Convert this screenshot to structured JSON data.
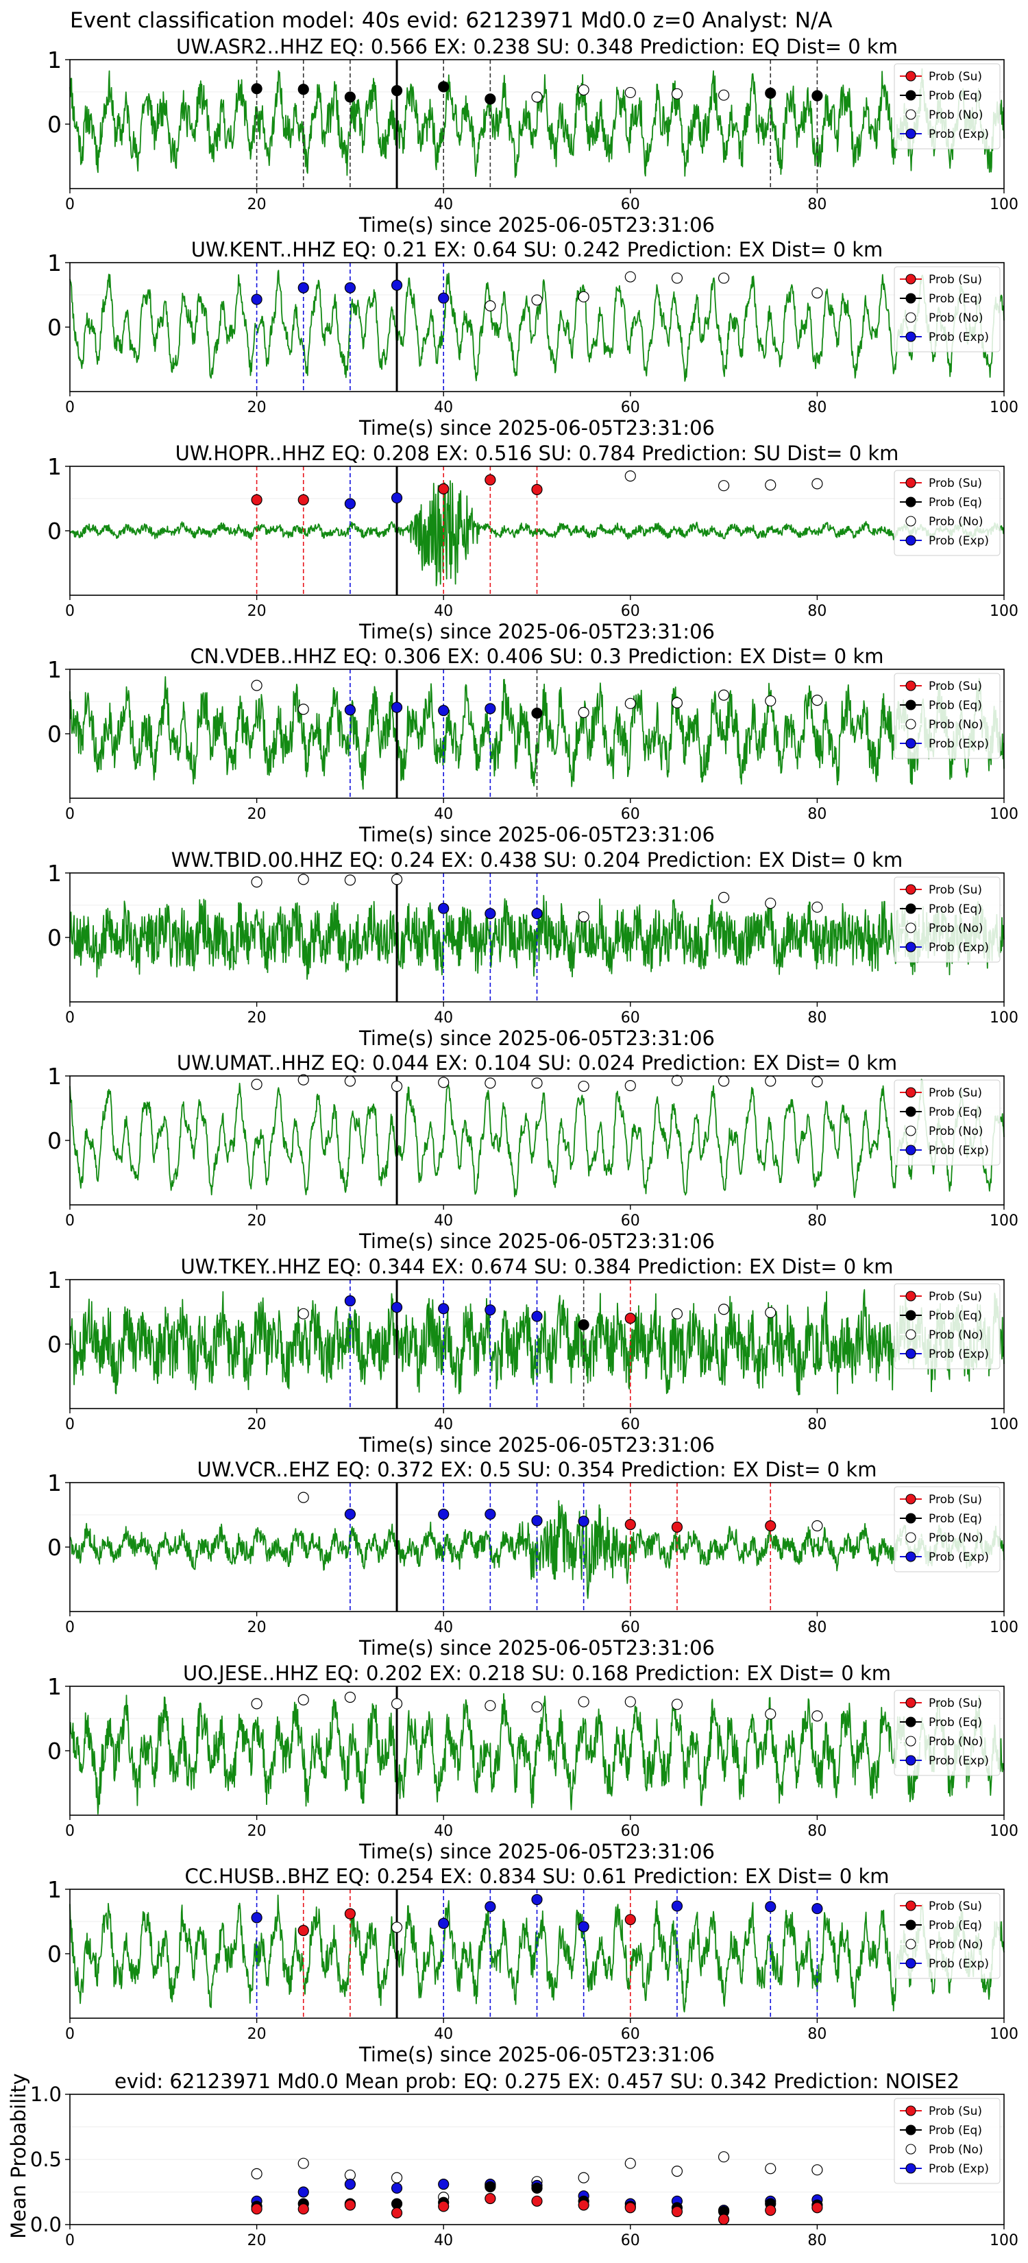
{
  "suptitle": "Event classification model: 40s evid: 62123971 Md0.0 z=0 Analyst: N/A",
  "colors": {
    "su": "#e8141c",
    "eq": "#000000",
    "no": "#ffffff",
    "exp": "#1010dd",
    "trace": "#138a13"
  },
  "legend": [
    "Prob (Su)",
    "Prob (Eq)",
    "Prob (No)",
    "Prob (Exp)"
  ],
  "x_axis": {
    "min": 0,
    "max": 100,
    "ticks": [
      0,
      20,
      40,
      60,
      80,
      100
    ]
  },
  "chart_data": [
    {
      "type": "scatter",
      "station": "UW.ASR2..HHZ",
      "title": "UW.ASR2..HHZ   EQ: 0.566  EX: 0.238  SU: 0.348   Prediction: EQ    Dist= 0 km",
      "xlabel": "Time(s) since 2025-06-05T23:31:06",
      "yticks": [
        0,
        1
      ],
      "ylim": [
        -1,
        1
      ],
      "trace": {
        "amp": 0.45,
        "noise": 0.25,
        "seed": 11
      },
      "pick_time": 35,
      "points": [
        [
          20,
          0.55,
          "eq"
        ],
        [
          25,
          0.54,
          "eq"
        ],
        [
          30,
          0.42,
          "eq"
        ],
        [
          35,
          0.52,
          "eq"
        ],
        [
          40,
          0.58,
          "eq"
        ],
        [
          45,
          0.39,
          "eq"
        ],
        [
          50,
          0.42,
          "no"
        ],
        [
          55,
          0.53,
          "no"
        ],
        [
          60,
          0.49,
          "no"
        ],
        [
          65,
          0.47,
          "no"
        ],
        [
          70,
          0.45,
          "no"
        ],
        [
          75,
          0.48,
          "eq"
        ],
        [
          80,
          0.44,
          "eq"
        ]
      ]
    },
    {
      "type": "scatter",
      "station": "UW.KENT..HHZ",
      "title": "UW.KENT..HHZ   EQ: 0.21  EX: 0.64  SU: 0.242   Prediction: EX    Dist= 0 km",
      "xlabel": "Time(s) since 2025-06-05T23:31:06",
      "yticks": [
        0,
        1
      ],
      "ylim": [
        -1,
        1
      ],
      "trace": {
        "amp": 0.55,
        "noise": 0.12,
        "seed": 23
      },
      "pick_time": 35,
      "points": [
        [
          20,
          0.43,
          "exp"
        ],
        [
          25,
          0.61,
          "exp"
        ],
        [
          30,
          0.61,
          "exp"
        ],
        [
          35,
          0.65,
          "exp"
        ],
        [
          40,
          0.45,
          "exp"
        ],
        [
          45,
          0.33,
          "no"
        ],
        [
          50,
          0.42,
          "no"
        ],
        [
          55,
          0.47,
          "no"
        ],
        [
          60,
          0.78,
          "no"
        ],
        [
          65,
          0.76,
          "no"
        ],
        [
          70,
          0.76,
          "no"
        ],
        [
          80,
          0.53,
          "no"
        ]
      ]
    },
    {
      "type": "scatter",
      "station": "UW.HOPR..HHZ",
      "title": "UW.HOPR..HHZ   EQ: 0.208  EX: 0.516  SU: 0.784   Prediction: SU    Dist= 0 km",
      "xlabel": "Time(s) since 2025-06-05T23:31:06",
      "yticks": [
        0,
        1
      ],
      "ylim": [
        -1,
        1
      ],
      "trace": {
        "amp": 0.06,
        "noise": 0.06,
        "seed": 37,
        "burst": [
          36,
          44,
          0.9
        ]
      },
      "pick_time": 35,
      "points": [
        [
          20,
          0.48,
          "su"
        ],
        [
          25,
          0.48,
          "su"
        ],
        [
          30,
          0.42,
          "exp"
        ],
        [
          35,
          0.51,
          "exp"
        ],
        [
          40,
          0.65,
          "su"
        ],
        [
          45,
          0.79,
          "su"
        ],
        [
          50,
          0.64,
          "su"
        ],
        [
          60,
          0.85,
          "no"
        ],
        [
          70,
          0.7,
          "no"
        ],
        [
          75,
          0.71,
          "no"
        ],
        [
          80,
          0.73,
          "no"
        ]
      ]
    },
    {
      "type": "scatter",
      "station": "CN.VDEB..HHZ",
      "title": "CN.VDEB..HHZ   EQ: 0.306  EX: 0.406  SU: 0.3   Prediction: EX    Dist= 0 km",
      "xlabel": "Time(s) since 2025-06-05T23:31:06",
      "yticks": [
        0,
        1
      ],
      "ylim": [
        -1,
        1
      ],
      "trace": {
        "amp": 0.45,
        "noise": 0.3,
        "seed": 41
      },
      "pick_time": 35,
      "points": [
        [
          20,
          0.75,
          "no"
        ],
        [
          25,
          0.38,
          "no"
        ],
        [
          30,
          0.37,
          "exp"
        ],
        [
          35,
          0.41,
          "exp"
        ],
        [
          40,
          0.36,
          "exp"
        ],
        [
          45,
          0.39,
          "exp"
        ],
        [
          50,
          0.32,
          "eq"
        ],
        [
          55,
          0.33,
          "no"
        ],
        [
          60,
          0.47,
          "no"
        ],
        [
          65,
          0.48,
          "no"
        ],
        [
          70,
          0.6,
          "no"
        ],
        [
          75,
          0.51,
          "no"
        ],
        [
          80,
          0.52,
          "no"
        ]
      ]
    },
    {
      "type": "scatter",
      "station": "WW.TBID.00.HHZ",
      "title": "WW.TBID.00.HHZ   EQ: 0.24  EX: 0.438  SU: 0.204   Prediction: EX    Dist= 0 km",
      "xlabel": "Time(s) since 2025-06-05T23:31:06",
      "yticks": [
        0,
        1
      ],
      "ylim": [
        -1,
        1
      ],
      "trace": {
        "amp": 0.2,
        "noise": 0.4,
        "seed": 53
      },
      "pick_time": 35,
      "points": [
        [
          20,
          0.86,
          "no"
        ],
        [
          25,
          0.9,
          "no"
        ],
        [
          30,
          0.89,
          "no"
        ],
        [
          35,
          0.9,
          "no"
        ],
        [
          40,
          0.45,
          "exp"
        ],
        [
          45,
          0.37,
          "exp"
        ],
        [
          50,
          0.37,
          "exp"
        ],
        [
          55,
          0.32,
          "no"
        ],
        [
          70,
          0.62,
          "no"
        ],
        [
          75,
          0.53,
          "no"
        ],
        [
          80,
          0.47,
          "no"
        ]
      ]
    },
    {
      "type": "scatter",
      "station": "UW.UMAT..HHZ",
      "title": "UW.UMAT..HHZ   EQ: 0.044  EX: 0.104  SU: 0.024   Prediction: EX    Dist= 0 km",
      "xlabel": "Time(s) since 2025-06-05T23:31:06",
      "yticks": [
        0,
        1
      ],
      "ylim": [
        -1,
        1
      ],
      "trace": {
        "amp": 0.6,
        "noise": 0.1,
        "seed": 67
      },
      "pick_time": 35,
      "points": [
        [
          20,
          0.87,
          "no"
        ],
        [
          25,
          0.94,
          "no"
        ],
        [
          30,
          0.92,
          "no"
        ],
        [
          35,
          0.84,
          "no"
        ],
        [
          40,
          0.9,
          "no"
        ],
        [
          45,
          0.89,
          "no"
        ],
        [
          50,
          0.89,
          "no"
        ],
        [
          55,
          0.84,
          "no"
        ],
        [
          60,
          0.85,
          "no"
        ],
        [
          65,
          0.93,
          "no"
        ],
        [
          70,
          0.92,
          "no"
        ],
        [
          75,
          0.92,
          "no"
        ],
        [
          80,
          0.91,
          "no"
        ]
      ]
    },
    {
      "type": "scatter",
      "station": "UW.TKEY..HHZ",
      "title": "UW.TKEY..HHZ   EQ: 0.344  EX: 0.674  SU: 0.384   Prediction: EX    Dist= 0 km",
      "xlabel": "Time(s) since 2025-06-05T23:31:06",
      "yticks": [
        0,
        1
      ],
      "ylim": [
        -1,
        1
      ],
      "trace": {
        "amp": 0.3,
        "noise": 0.45,
        "seed": 71
      },
      "pick_time": 35,
      "points": [
        [
          25,
          0.47,
          "no"
        ],
        [
          30,
          0.67,
          "exp"
        ],
        [
          35,
          0.57,
          "exp"
        ],
        [
          40,
          0.55,
          "exp"
        ],
        [
          45,
          0.53,
          "exp"
        ],
        [
          50,
          0.43,
          "exp"
        ],
        [
          55,
          0.3,
          "eq"
        ],
        [
          60,
          0.4,
          "su"
        ],
        [
          65,
          0.47,
          "no"
        ],
        [
          70,
          0.54,
          "no"
        ],
        [
          75,
          0.49,
          "no"
        ]
      ]
    },
    {
      "type": "scatter",
      "station": "UW.VCR..EHZ",
      "title": "UW.VCR..EHZ   EQ: 0.372  EX: 0.5  SU: 0.354   Prediction: EX    Dist= 0 km",
      "xlabel": "Time(s) since 2025-06-05T23:31:06",
      "yticks": [
        0,
        1
      ],
      "ylim": [
        -1,
        1
      ],
      "trace": {
        "amp": 0.18,
        "noise": 0.15,
        "seed": 83,
        "burst": [
          47,
          62,
          0.55
        ]
      },
      "pick_time": 35,
      "points": [
        [
          25,
          0.77,
          "no"
        ],
        [
          30,
          0.51,
          "exp"
        ],
        [
          40,
          0.51,
          "exp"
        ],
        [
          45,
          0.51,
          "exp"
        ],
        [
          50,
          0.41,
          "exp"
        ],
        [
          55,
          0.4,
          "exp"
        ],
        [
          60,
          0.35,
          "su"
        ],
        [
          65,
          0.31,
          "su"
        ],
        [
          75,
          0.33,
          "su"
        ],
        [
          80,
          0.33,
          "no"
        ]
      ]
    },
    {
      "type": "scatter",
      "station": "UO.JESE..HHZ",
      "title": "UO.JESE..HHZ   EQ: 0.202  EX: 0.218  SU: 0.168   Prediction: EX    Dist= 0 km",
      "xlabel": "Time(s) since 2025-06-05T23:31:06",
      "yticks": [
        0,
        1
      ],
      "ylim": [
        -1,
        1
      ],
      "trace": {
        "amp": 0.5,
        "noise": 0.28,
        "seed": 97
      },
      "pick_time": 35,
      "points": [
        [
          20,
          0.73,
          "no"
        ],
        [
          25,
          0.79,
          "no"
        ],
        [
          30,
          0.83,
          "no"
        ],
        [
          35,
          0.73,
          "no"
        ],
        [
          45,
          0.7,
          "no"
        ],
        [
          50,
          0.68,
          "no"
        ],
        [
          55,
          0.76,
          "no"
        ],
        [
          60,
          0.76,
          "no"
        ],
        [
          65,
          0.72,
          "no"
        ],
        [
          75,
          0.57,
          "no"
        ],
        [
          80,
          0.54,
          "no"
        ]
      ]
    },
    {
      "type": "scatter",
      "station": "CC.HUSB..BHZ",
      "title": "CC.HUSB..BHZ   EQ: 0.254  EX: 0.834  SU: 0.61   Prediction: EX    Dist= 0 km",
      "xlabel": "Time(s) since 2025-06-05T23:31:06",
      "yticks": [
        0,
        1
      ],
      "ylim": [
        -1,
        1
      ],
      "trace": {
        "amp": 0.5,
        "noise": 0.22,
        "seed": 101
      },
      "pick_time": 35,
      "points": [
        [
          20,
          0.56,
          "exp"
        ],
        [
          25,
          0.36,
          "su"
        ],
        [
          30,
          0.62,
          "su"
        ],
        [
          35,
          0.41,
          "no"
        ],
        [
          40,
          0.47,
          "exp"
        ],
        [
          45,
          0.73,
          "exp"
        ],
        [
          50,
          0.84,
          "exp"
        ],
        [
          55,
          0.42,
          "exp"
        ],
        [
          60,
          0.53,
          "su"
        ],
        [
          65,
          0.74,
          "exp"
        ],
        [
          75,
          0.73,
          "exp"
        ],
        [
          80,
          0.7,
          "exp"
        ]
      ]
    },
    {
      "type": "scatter",
      "station": "mean",
      "title": "evid: 62123971  Md0.0   Mean prob:   EQ: 0.275  EX: 0.457  SU: 0.342   Prediction: NOISE2",
      "xlabel": "",
      "ylabel": "Mean Probability",
      "ylim": [
        0,
        1
      ],
      "yticks": [
        0.0,
        0.5,
        1.0
      ],
      "points": [
        [
          20,
          0.39,
          "no"
        ],
        [
          20,
          0.18,
          "exp"
        ],
        [
          20,
          0.14,
          "eq"
        ],
        [
          20,
          0.12,
          "su"
        ],
        [
          25,
          0.47,
          "no"
        ],
        [
          25,
          0.25,
          "exp"
        ],
        [
          25,
          0.16,
          "eq"
        ],
        [
          25,
          0.12,
          "su"
        ],
        [
          30,
          0.38,
          "no"
        ],
        [
          30,
          0.31,
          "exp"
        ],
        [
          30,
          0.16,
          "eq"
        ],
        [
          30,
          0.15,
          "su"
        ],
        [
          35,
          0.36,
          "no"
        ],
        [
          35,
          0.28,
          "exp"
        ],
        [
          35,
          0.16,
          "eq"
        ],
        [
          35,
          0.09,
          "su"
        ],
        [
          40,
          0.21,
          "no"
        ],
        [
          40,
          0.31,
          "exp"
        ],
        [
          40,
          0.17,
          "eq"
        ],
        [
          40,
          0.14,
          "su"
        ],
        [
          45,
          0.3,
          "no"
        ],
        [
          45,
          0.31,
          "exp"
        ],
        [
          45,
          0.29,
          "eq"
        ],
        [
          45,
          0.2,
          "su"
        ],
        [
          50,
          0.33,
          "no"
        ],
        [
          50,
          0.3,
          "exp"
        ],
        [
          50,
          0.28,
          "eq"
        ],
        [
          50,
          0.18,
          "su"
        ],
        [
          55,
          0.36,
          "no"
        ],
        [
          55,
          0.22,
          "exp"
        ],
        [
          55,
          0.18,
          "eq"
        ],
        [
          55,
          0.15,
          "su"
        ],
        [
          60,
          0.47,
          "no"
        ],
        [
          60,
          0.16,
          "exp"
        ],
        [
          60,
          0.14,
          "eq"
        ],
        [
          60,
          0.13,
          "su"
        ],
        [
          65,
          0.41,
          "no"
        ],
        [
          65,
          0.18,
          "exp"
        ],
        [
          65,
          0.13,
          "eq"
        ],
        [
          65,
          0.1,
          "su"
        ],
        [
          70,
          0.52,
          "no"
        ],
        [
          70,
          0.11,
          "exp"
        ],
        [
          70,
          0.1,
          "eq"
        ],
        [
          70,
          0.04,
          "su"
        ],
        [
          75,
          0.43,
          "no"
        ],
        [
          75,
          0.18,
          "exp"
        ],
        [
          75,
          0.16,
          "eq"
        ],
        [
          75,
          0.11,
          "su"
        ],
        [
          80,
          0.42,
          "no"
        ],
        [
          80,
          0.19,
          "exp"
        ],
        [
          80,
          0.15,
          "eq"
        ],
        [
          80,
          0.13,
          "su"
        ]
      ]
    }
  ]
}
